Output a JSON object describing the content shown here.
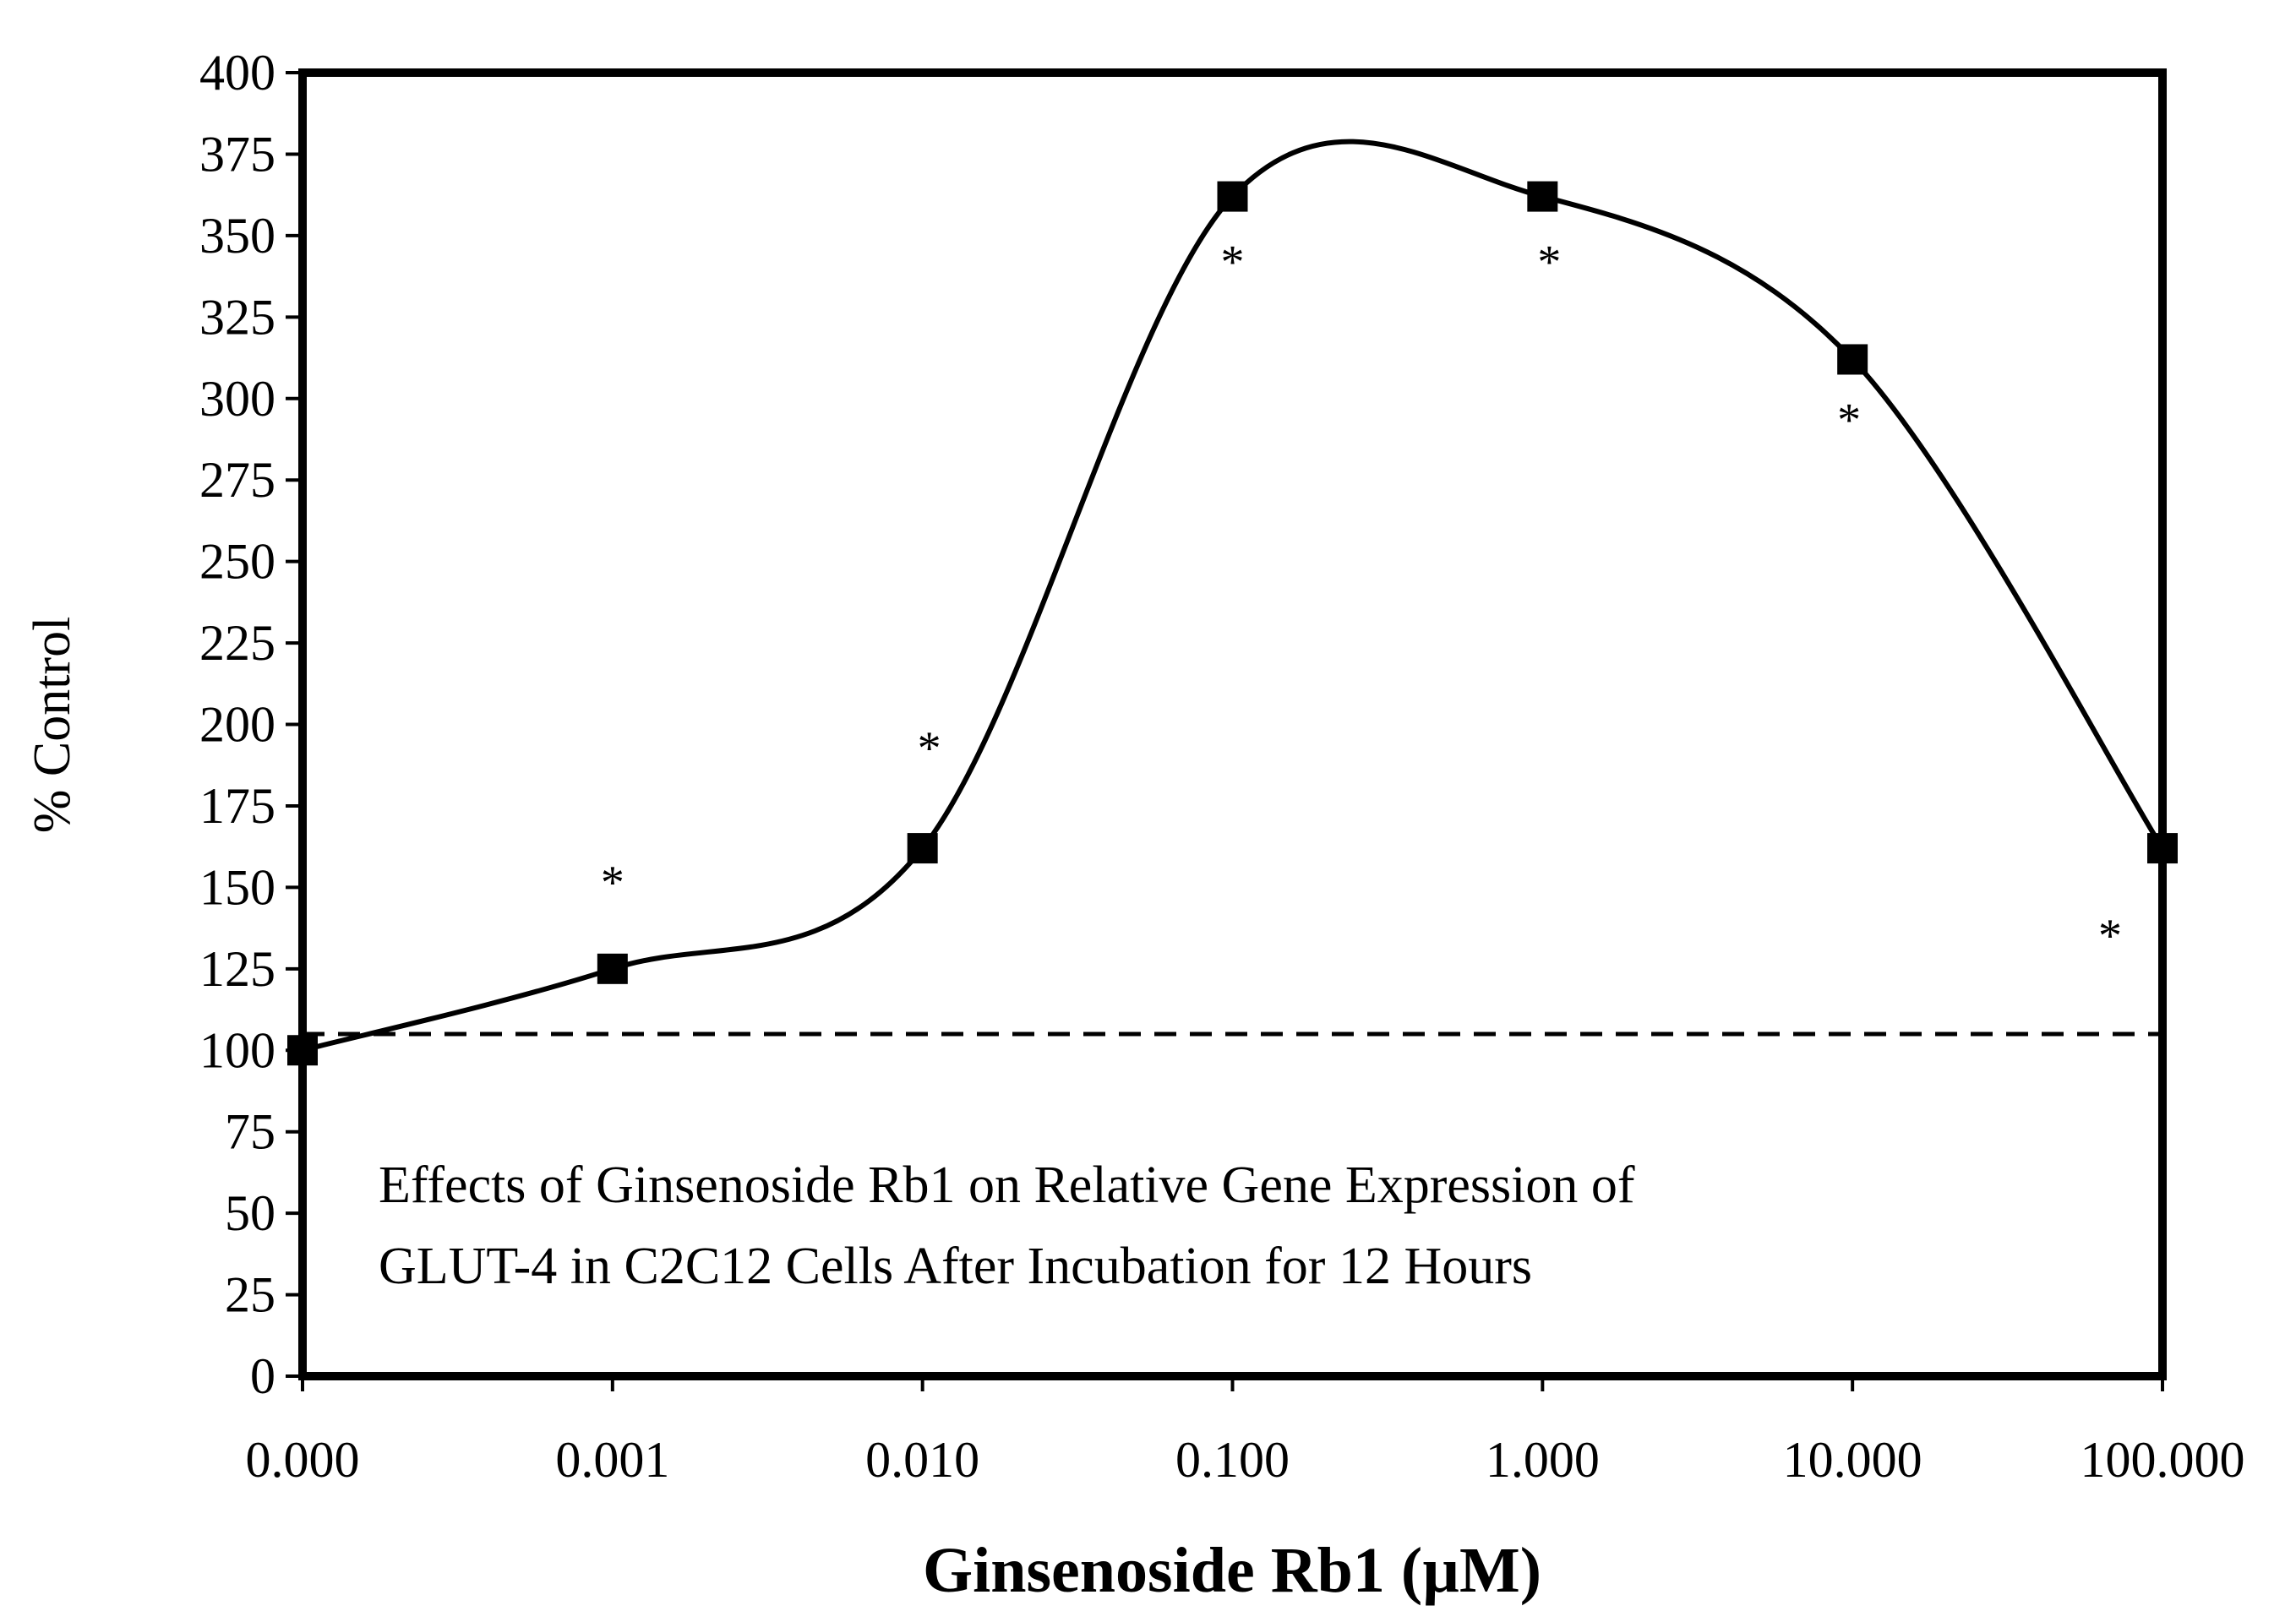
{
  "chart_data": {
    "type": "line",
    "title": "",
    "xlabel": "Ginsenoside Rb1 (µM)",
    "ylabel": "% Control",
    "x_scale": "log",
    "categories": [
      "0.000",
      "0.001",
      "0.010",
      "0.100",
      "1.000",
      "10.000",
      "100.000"
    ],
    "series": [
      {
        "name": "GLUT-4 relative gene expression",
        "values": [
          100,
          125,
          162,
          362,
          362,
          312,
          162
        ],
        "significance": [
          "",
          "*",
          "*",
          "*",
          "*",
          "*",
          "*"
        ],
        "marker": "square",
        "line": "smooth"
      }
    ],
    "ylim": [
      0,
      400
    ],
    "yticks": [
      0,
      25,
      50,
      75,
      100,
      125,
      150,
      175,
      200,
      225,
      250,
      275,
      300,
      325,
      350,
      375,
      400
    ],
    "reference_line": {
      "y": 105,
      "style": "dashed"
    },
    "annotation": [
      "Effects of Ginsenoside Rb1 on Relative Gene Expression of",
      "GLUT-4 in C2C12 Cells After Incubation for 12 Hours"
    ],
    "grid": false,
    "legend": "none"
  },
  "colors": {
    "line": "#000000",
    "background": "#ffffff"
  }
}
